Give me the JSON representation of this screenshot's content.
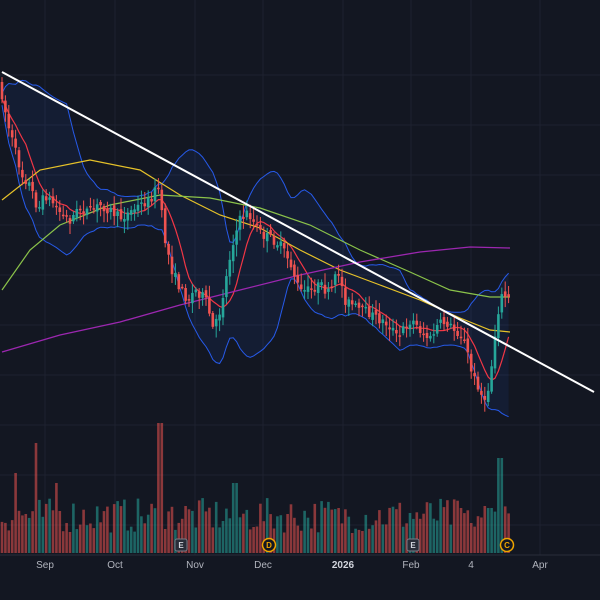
{
  "chart_data": {
    "type": "candlestick",
    "xaxis_labels": [
      "Sep",
      "Oct",
      "Nov",
      "Dec",
      "2026",
      "Feb",
      "4",
      "Apr"
    ],
    "xaxis_bold_label": "2026",
    "event_markers": [
      {
        "label": "E",
        "type": "earnings",
        "after_month": "Oct"
      },
      {
        "label": "D",
        "type": "dividend",
        "after_month": "Nov"
      },
      {
        "label": "E",
        "type": "earnings",
        "after_month": "Jan"
      },
      {
        "label": "C",
        "type": "corporate-action",
        "after_month": "Mar"
      }
    ],
    "overlays": [
      "bollinger-bands",
      "ema-fast",
      "sma-medium",
      "sma-slow",
      "sma-long",
      "trendline"
    ],
    "grid": true,
    "legend": "none",
    "colors": {
      "background": "#131722",
      "up": "#26a69a",
      "down": "#ef5350",
      "bollinger": "#2962ff",
      "ema_fast": "#f23645",
      "sma_medium": "#e6c229",
      "sma_slow": "#8bc34a",
      "sma_long": "#9c27b0",
      "trendline": "#ffffff",
      "grid": "#1e2230"
    }
  }
}
